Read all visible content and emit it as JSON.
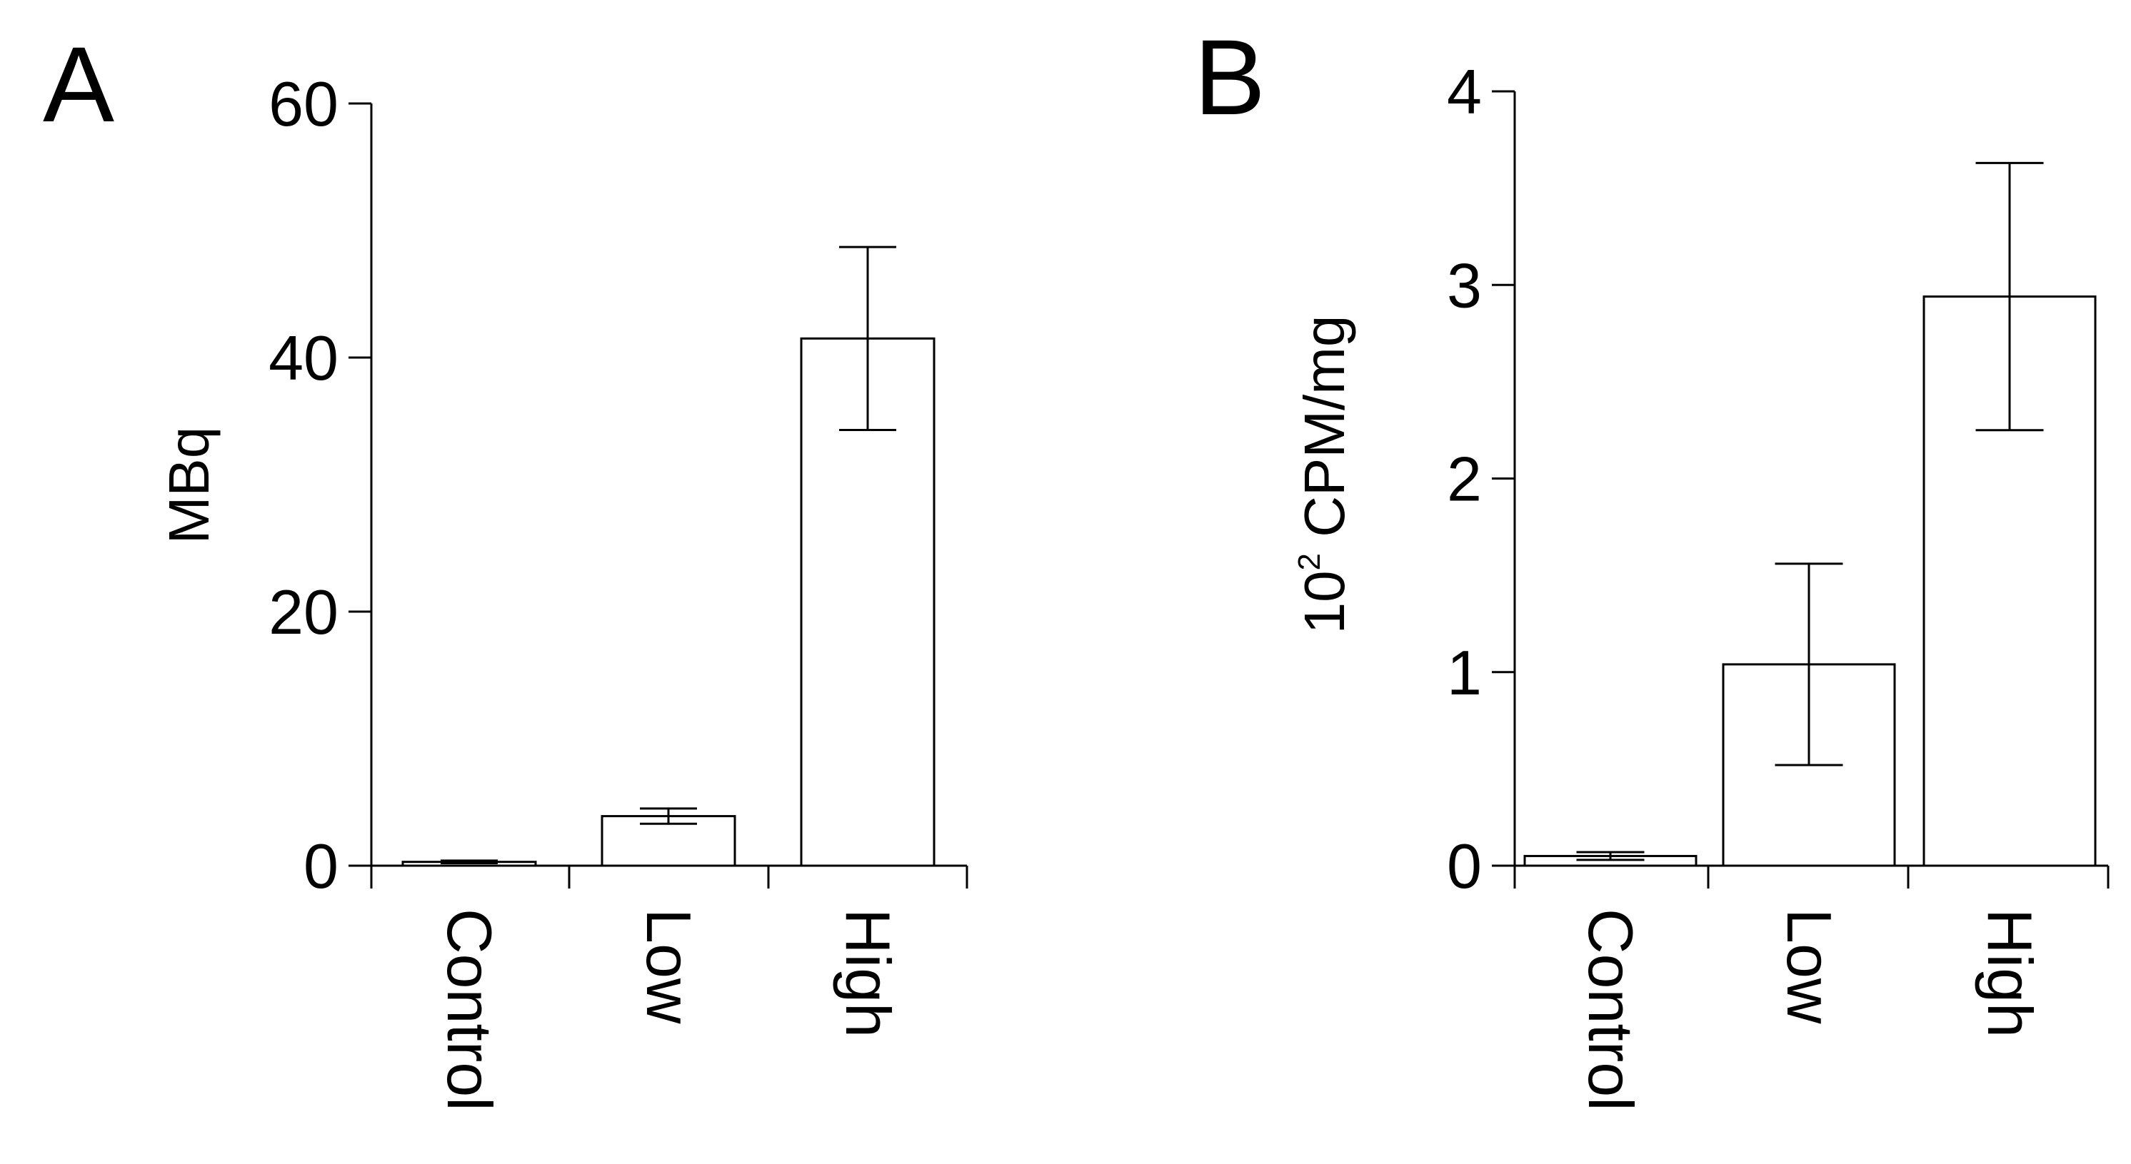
{
  "chart_data": [
    {
      "panel": "A",
      "type": "bar",
      "categories": [
        "Control",
        "Low",
        "High"
      ],
      "values": [
        0.3,
        3.9,
        41.5
      ],
      "errors": [
        0.1,
        0.6,
        7.2
      ],
      "ylabel": "MBq",
      "ylim": [
        0,
        60
      ],
      "yticks": [
        0,
        20,
        40,
        60
      ],
      "grid": false,
      "legend": "none",
      "bar_fill": "#ffffff",
      "bar_stroke": "#000000"
    },
    {
      "panel": "B",
      "type": "bar",
      "categories": [
        "Control",
        "Low",
        "High"
      ],
      "values": [
        0.05,
        1.04,
        2.94
      ],
      "errors": [
        0.02,
        0.52,
        0.69
      ],
      "ylabel_prefix": "10",
      "ylabel_sup": "2",
      "ylabel": "CPM/mg",
      "ylim": [
        0,
        4
      ],
      "yticks": [
        0,
        1,
        2,
        3,
        4
      ],
      "grid": false,
      "legend": "none",
      "bar_fill": "#ffffff",
      "bar_stroke": "#000000"
    }
  ]
}
